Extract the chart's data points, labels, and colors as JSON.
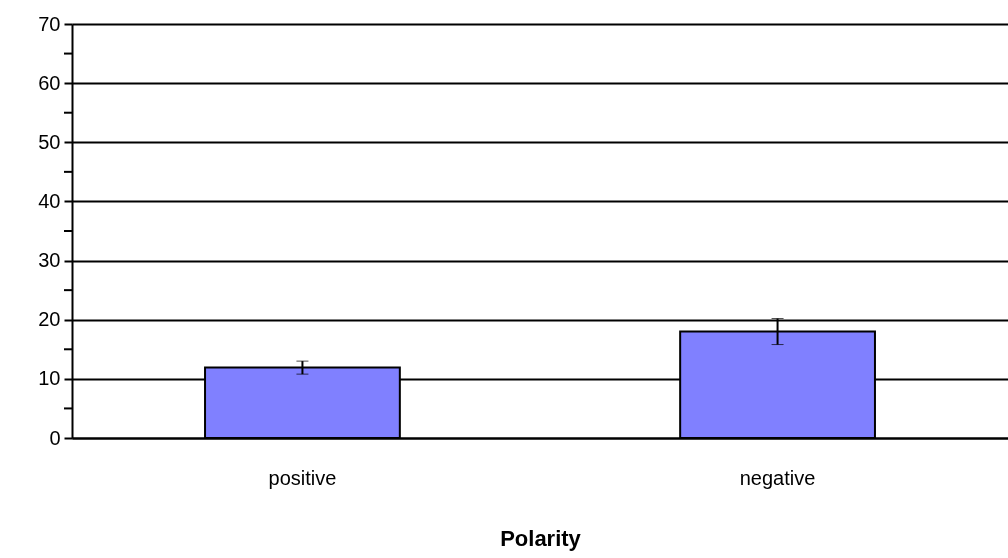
{
  "chart_data": {
    "type": "bar",
    "xlabel": "Polarity",
    "categories": [
      "positive",
      "negative"
    ],
    "series": [
      {
        "color": "#8080ff",
        "values": [
          11.9,
          18.0
        ],
        "errors": [
          1.1,
          2.2
        ]
      }
    ],
    "ylim": [
      0,
      70
    ],
    "yticks": [
      0,
      {
        "value": 5,
        "label": null
      },
      10,
      {
        "value": 15,
        "label": null
      },
      20,
      {
        "value": 25,
        "label": null
      },
      30,
      {
        "value": 35,
        "label": null
      },
      40,
      {
        "value": 45,
        "label": null
      },
      50,
      {
        "value": 55,
        "label": null
      },
      60,
      {
        "value": 65,
        "label": null
      },
      70
    ],
    "grid": "y"
  }
}
